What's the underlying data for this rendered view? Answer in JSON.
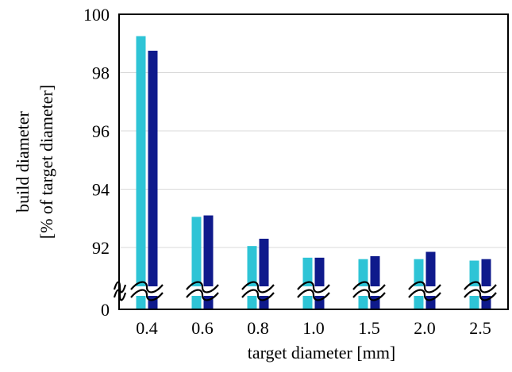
{
  "chart_data": {
    "type": "bar",
    "title": "",
    "xlabel": "target diameter [mm]",
    "ylabel_lines": [
      "build diameter",
      "[% of target diameter]"
    ],
    "categories": [
      "0.4",
      "0.6",
      "0.8",
      "1.0",
      "1.5",
      "2.0",
      "2.5"
    ],
    "series": [
      {
        "color": "#2ec4d6",
        "values": [
          99.25,
          93.05,
          92.05,
          91.65,
          91.6,
          91.6,
          91.55
        ]
      },
      {
        "color": "#0f1a8c",
        "values": [
          98.75,
          93.1,
          92.3,
          91.65,
          91.7,
          91.85,
          91.6
        ]
      }
    ],
    "y_axis": {
      "tick_labels": [
        "0",
        "92",
        "94",
        "96",
        "98",
        "100"
      ],
      "broken": true,
      "break_from": 0,
      "break_to": 90.25,
      "visible_range": [
        90.25,
        100
      ]
    },
    "ylim": [
      0,
      100
    ],
    "grid": "horizontal",
    "legend": "none"
  }
}
